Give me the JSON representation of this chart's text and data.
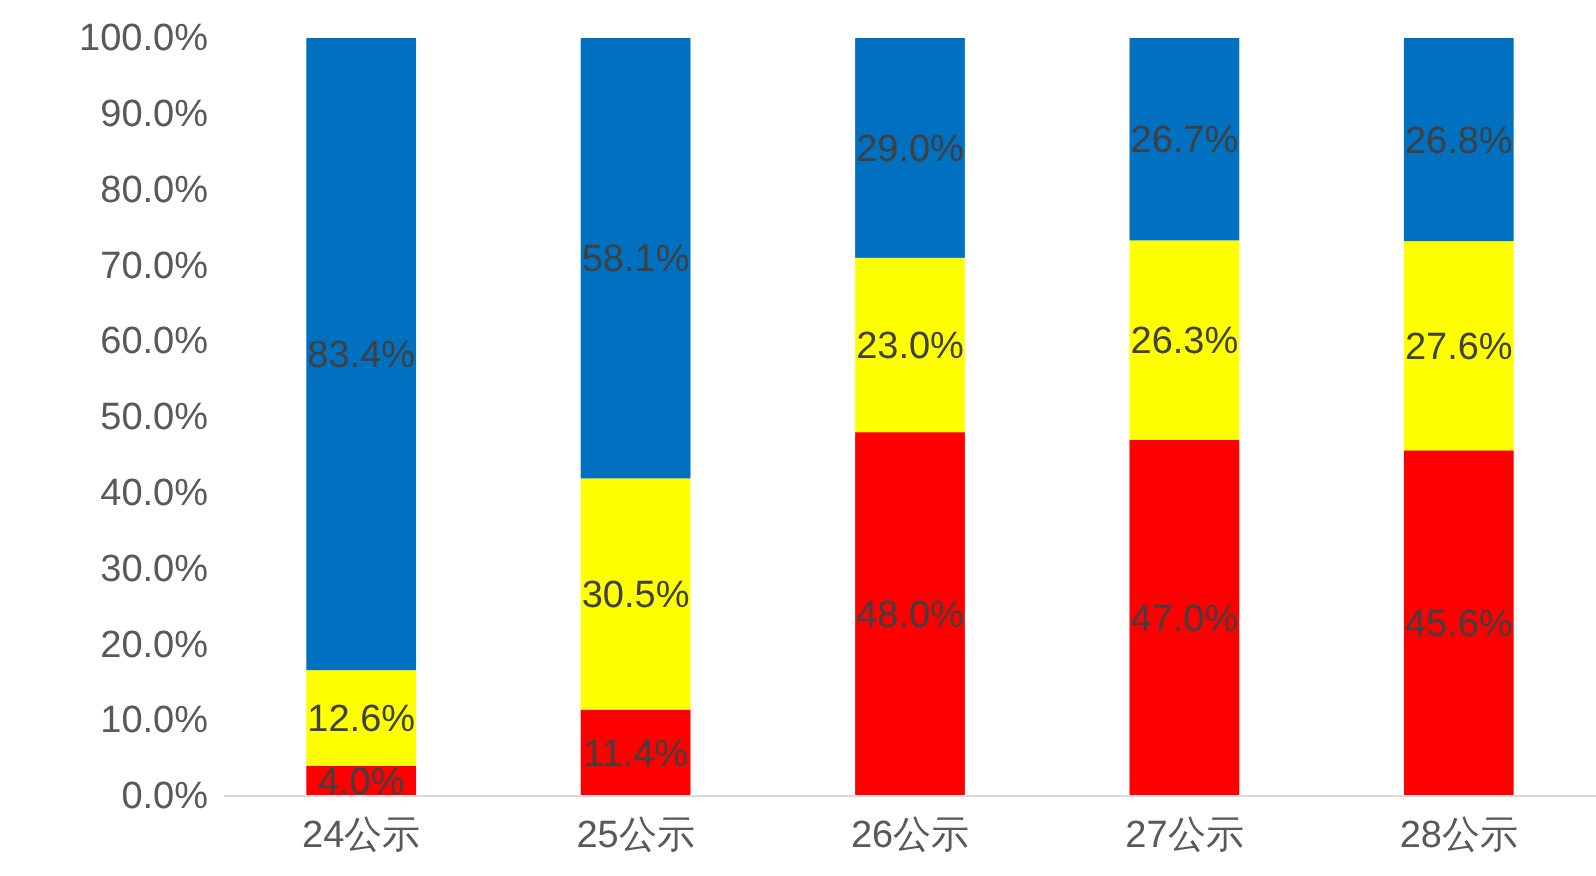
{
  "chart_data": {
    "type": "bar",
    "stacked": true,
    "categories": [
      "24公示",
      "25公示",
      "26公示",
      "27公示",
      "28公示"
    ],
    "series": [
      {
        "color": "#ff0000",
        "values": [
          4.0,
          11.4,
          48.0,
          47.0,
          45.6
        ],
        "value_labels": [
          "4.0%",
          "11.4%",
          "48.0%",
          "47.0%",
          "45.6%"
        ]
      },
      {
        "color": "#ffff00",
        "values": [
          12.6,
          30.5,
          23.0,
          26.3,
          27.6
        ],
        "value_labels": [
          "12.6%",
          "30.5%",
          "23.0%",
          "26.3%",
          "27.6%"
        ]
      },
      {
        "color": "#0070c0",
        "values": [
          83.4,
          58.1,
          29.0,
          26.7,
          26.8
        ],
        "value_labels": [
          "83.4%",
          "58.1%",
          "29.0%",
          "26.7%",
          "26.8%"
        ]
      }
    ],
    "ylim": [
      0,
      100
    ],
    "yticks": [
      {
        "value": 0,
        "label": "0.0%"
      },
      {
        "value": 10,
        "label": "10.0%"
      },
      {
        "value": 20,
        "label": "20.0%"
      },
      {
        "value": 30,
        "label": "30.0%"
      },
      {
        "value": 40,
        "label": "40.0%"
      },
      {
        "value": 50,
        "label": "50.0%"
      },
      {
        "value": 60,
        "label": "60.0%"
      },
      {
        "value": 70,
        "label": "70.0%"
      },
      {
        "value": 80,
        "label": "80.0%"
      },
      {
        "value": 90,
        "label": "90.0%"
      },
      {
        "value": 100,
        "label": "100.0%"
      }
    ],
    "grid": false
  }
}
